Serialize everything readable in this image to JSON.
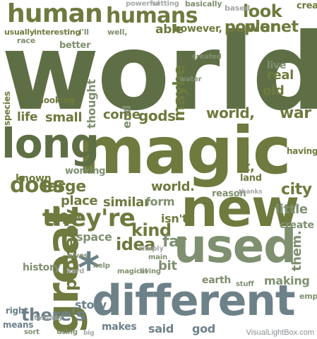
{
  "palette": {
    "background": "#ffffff",
    "dark_olive": "#5f6f45",
    "olive": "#6e7a3e",
    "sage": "#7f9070",
    "slate": "#6d8189",
    "light_gray": "#a3a8a5"
  },
  "watermark": "VisualLightBox.com",
  "words": [
    "world",
    "magic",
    "new",
    "long",
    "great",
    "different",
    "used",
    "human",
    "humans",
    "they're",
    "*",
    "there's",
    "does",
    "planet",
    "look",
    "power",
    "small",
    "life",
    "gods",
    "come",
    "maybe",
    "world,",
    "war",
    "it,",
    "large",
    "city",
    "little",
    "probably",
    "kind",
    "idea",
    "far",
    "bit",
    "space",
    "story",
    "high",
    "earth",
    "making",
    "them.",
    "isn't",
    "similar",
    "form",
    "place",
    "world.",
    "old",
    "trying",
    "sure",
    "energy",
    "land",
    "map",
    "real",
    "live",
    "able",
    "however,",
    "based",
    "create",
    "point",
    "having",
    "thought",
    "end",
    "species",
    "looking",
    "created",
    "powerful",
    "setting",
    "basically",
    "usually",
    "interesting",
    "i'll",
    "well,",
    "better",
    "race",
    "history",
    "elves",
    "help",
    "magical",
    "living",
    "main",
    "hard",
    "stuff",
    "empire",
    "fantasy",
    "sort",
    "using",
    "makes",
    "said",
    "god",
    "big",
    "means",
    "right",
    "water",
    "known",
    "working",
    "reason",
    "thanks",
    "simply"
  ]
}
